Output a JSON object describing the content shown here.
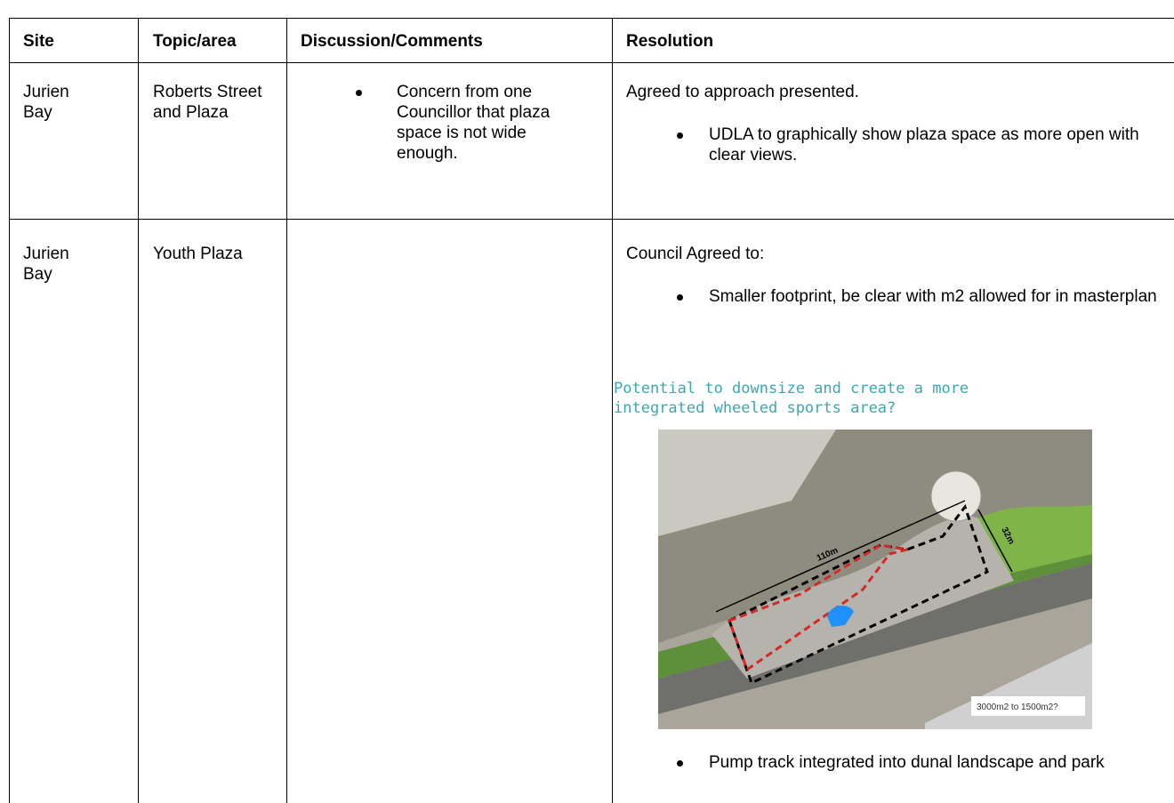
{
  "table": {
    "header": [
      "Site",
      "Topic/area",
      "Discussion/Comments",
      "Resolution"
    ],
    "rows": [
      {
        "site": "Jurien Bay",
        "topic": "Roberts Street and Plaza",
        "discussion": [
          "Concern from one Councillor that plaza space is not wide enough."
        ],
        "resolution": {
          "intro": "Agreed to approach presented.",
          "bullets": [
            "UDLA to graphically show plaza space as more open with clear views."
          ]
        }
      },
      {
        "site": "Jurien Bay",
        "topic": "Youth Plaza",
        "resolution": {
          "intro": "Council Agreed to:",
          "bullets": [
            "Smaller footprint, be clear with m2 allowed for in masterplan"
          ],
          "figure": {
            "caption": "Potential to downsize and create a more integrated wheeled sports area?",
            "labels": [
              "110m",
              "32m",
              "3000m2 to 1500m2?"
            ]
          },
          "bullets_after": [
            "Pump track integrated into dunal landscape and park"
          ]
        }
      }
    ]
  }
}
